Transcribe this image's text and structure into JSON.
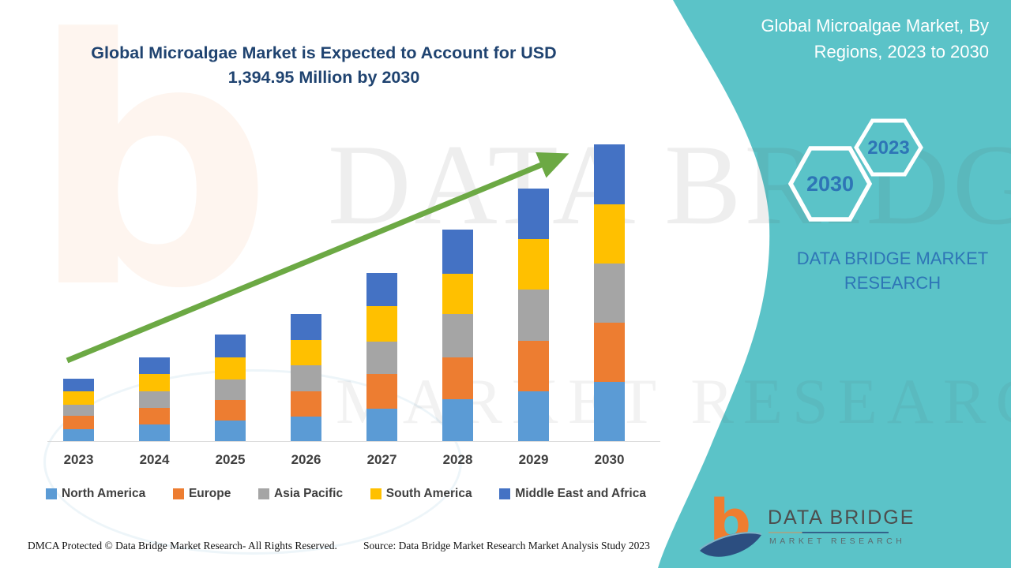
{
  "header": {
    "title_line1": "Global Microalgae Market is Expected to Account for USD",
    "title_line2": "1,394.95 Million by 2030"
  },
  "side_panel": {
    "panel_title_line1": "Global Microalgae Market,  By",
    "panel_title_line2": "Regions, 2023 to 2030",
    "hex_large_label": "2030",
    "hex_small_label": "2023",
    "brand_line1": "DATA BRIDGE MARKET",
    "brand_line2": "RESEARCH"
  },
  "chart_data": {
    "type": "bar",
    "stacked": true,
    "title": "Global Microalgae Market is Expected to Account for USD 1,394.95 Million by 2030",
    "unit": "USD Million",
    "categories": [
      "2023",
      "2024",
      "2025",
      "2026",
      "2027",
      "2028",
      "2029",
      "2030"
    ],
    "series": [
      {
        "name": "North America",
        "color": "#5B9BD5",
        "values": [
          56,
          78,
          96,
          115,
          154,
          197,
          235,
          277
        ]
      },
      {
        "name": "Europe",
        "color": "#ED7D31",
        "values": [
          62,
          79,
          98,
          120,
          163,
          198,
          235,
          280
        ]
      },
      {
        "name": "Asia Pacific",
        "color": "#A5A5A5",
        "values": [
          52,
          77,
          96,
          121,
          151,
          203,
          244,
          278
        ]
      },
      {
        "name": "South America",
        "color": "#FFC000",
        "values": [
          65,
          82,
          105,
          119,
          168,
          190,
          236,
          278
        ]
      },
      {
        "name": "Middle East and Africa",
        "color": "#4472C4",
        "values": [
          59,
          78,
          106,
          122,
          156,
          207,
          237,
          281.95
        ]
      }
    ],
    "totals_estimated": [
      294,
      394,
      501,
      597,
      792,
      995,
      1187,
      1394.95
    ],
    "ylim": [
      0,
      1480
    ],
    "grid": false,
    "legend_position": "bottom",
    "annotations": [
      "green upward trend arrow across bar tops"
    ]
  },
  "watermark": {
    "line1": "DATA BRIDGE",
    "line2": "MARKET RESEARCH",
    "monogram": "b"
  },
  "footer": {
    "dmca": "DMCA Protected © Data Bridge Market Research- All Rights Reserved.",
    "source": "Source: Data Bridge Market Research Market Analysis Study 2023"
  },
  "logo": {
    "monogram": "b",
    "name": "DATA BRIDGE",
    "subtitle": "MARKET RESEARCH"
  },
  "colors": {
    "teal_panel": "#5BC3C8",
    "title_navy": "#1F4370",
    "accent_blue": "#2E75B6",
    "arrow_green": "#6CA944",
    "axis_gray": "#D9D9D9",
    "label_gray": "#404040"
  }
}
